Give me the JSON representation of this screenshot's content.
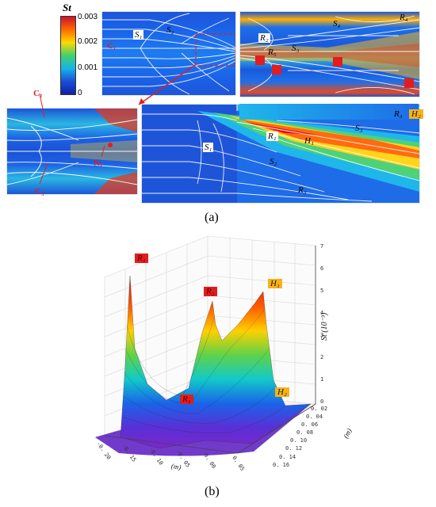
{
  "colorbar": {
    "title": "St",
    "ticks": [
      "0.003",
      "0.002",
      "0.001",
      "0"
    ],
    "gradient": [
      "#c8102e",
      "#ff6a00",
      "#ffd800",
      "#43d16b",
      "#15b5e8",
      "#1a4fd6",
      "#1020a8"
    ]
  },
  "panel_a": {
    "caption": "(a)",
    "labels": {
      "s1": "S₁",
      "s2": "S₂",
      "r2": "R₂",
      "r5": "R₅",
      "s3": "S₃",
      "s4": "S₄",
      "r4": "R₄",
      "c1": "C₁",
      "c2": "C₂",
      "c3": "C₃",
      "n1": "N₁",
      "s1b": "S₁",
      "r1": "R₁",
      "h1": "H₁",
      "s3b": "S₃",
      "s2b": "S₂",
      "r3": "R₃",
      "r3b": "R₃",
      "h2": "H₂"
    }
  },
  "panel_b": {
    "caption": "(b)",
    "tags": {
      "red1": "R₁",
      "red2": "R₂",
      "red3": "R₃",
      "h1": "H₁",
      "h2": "H₂"
    },
    "z_axis": {
      "ticks": [
        "7",
        "6",
        "5",
        "4",
        "3",
        "2",
        "1",
        "0"
      ],
      "label": "St (10⁻³)"
    },
    "y_axis": {
      "ticks": [
        "0. 02",
        "0. 04",
        "0. 06",
        "0. 08",
        "0. 10",
        "0. 12",
        "0. 14",
        "0. 16"
      ],
      "label": "(m)"
    },
    "x_axis": {
      "ticks": [
        "-0. 20",
        "-0. 15",
        "-0. 10",
        "-0. 05",
        "0. 00",
        "0. 05"
      ],
      "label": "(m)"
    }
  }
}
